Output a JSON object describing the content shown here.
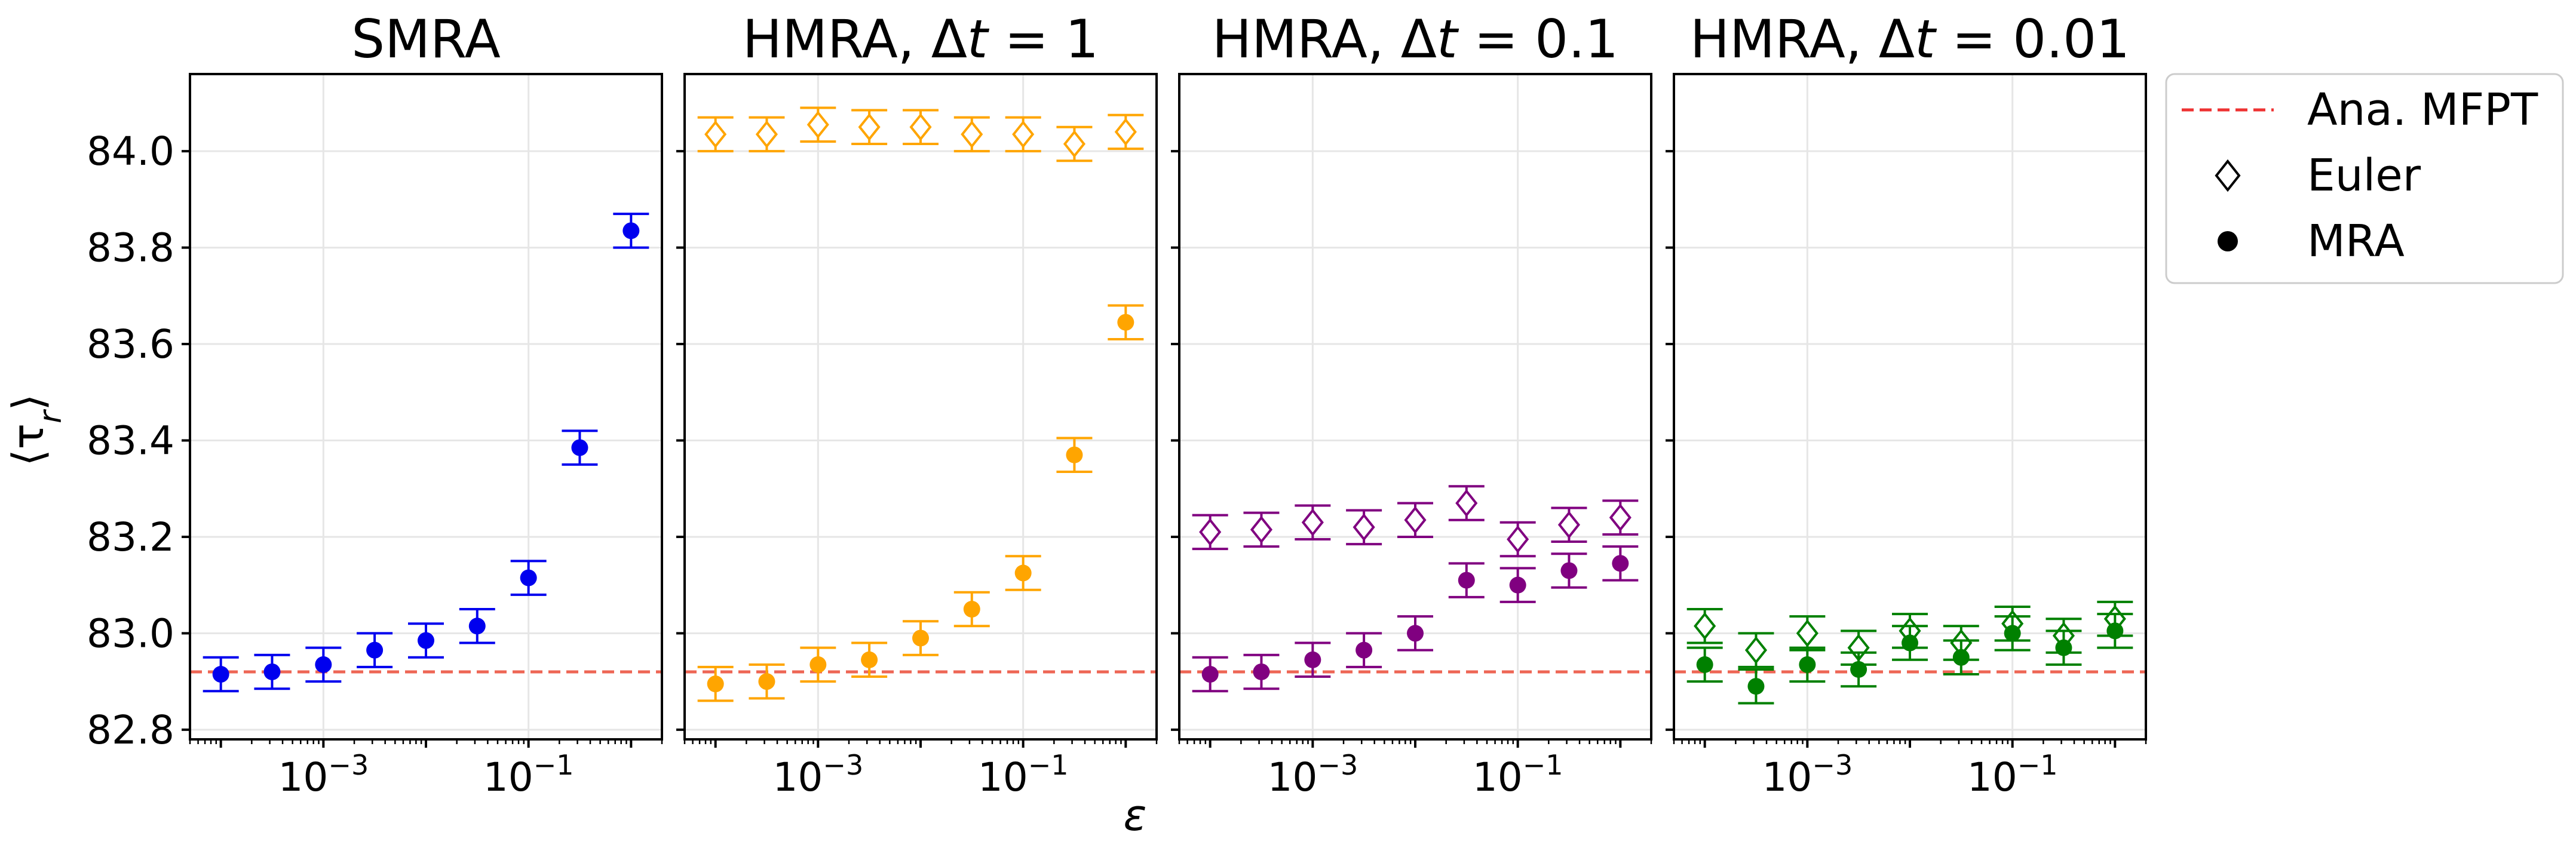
{
  "chart_data": {
    "type": "scatter",
    "ylabel": "⟨τ_r⟩",
    "xlabel": "ε",
    "xscale": "log",
    "xlim": [
      5e-05,
      2.0
    ],
    "ylim": [
      82.78,
      84.16
    ],
    "x_ticks": [
      {
        "value": 0.001,
        "base": "10",
        "exp": "−3"
      },
      {
        "value": 0.1,
        "base": "10",
        "exp": "−1"
      }
    ],
    "y_ticks": [
      82.8,
      83.0,
      83.2,
      83.4,
      83.6,
      83.8,
      84.0
    ],
    "y_tick_labels": [
      "82.8",
      "83.0",
      "83.2",
      "83.4",
      "83.6",
      "83.8",
      "84.0"
    ],
    "grid": true,
    "legend": {
      "position": "outside-right",
      "entries": [
        {
          "label": "Ana. MFPT",
          "marker": "dashed-line",
          "color": "#ee3333"
        },
        {
          "label": "Euler",
          "marker": "open-diamond",
          "color": "#000000"
        },
        {
          "label": "MRA",
          "marker": "filled-circle",
          "color": "#000000"
        }
      ]
    },
    "reference_line": {
      "label": "Ana. MFPT",
      "value": 82.92,
      "color": "#ee6655"
    },
    "x": [
      0.0001,
      0.000316,
      0.001,
      0.00316,
      0.01,
      0.0316,
      0.1,
      0.316,
      1.0
    ],
    "panels": [
      {
        "title_main": "SMRA",
        "title_math": "",
        "color": "#0000ee",
        "series": [
          {
            "name": "MRA",
            "marker": "circle",
            "values": [
              82.915,
              82.92,
              82.935,
              82.965,
              82.985,
              83.015,
              83.115,
              83.385,
              83.835
            ],
            "errors": [
              0.035,
              0.035,
              0.035,
              0.035,
              0.035,
              0.035,
              0.035,
              0.035,
              0.035
            ]
          }
        ]
      },
      {
        "title_main": "HMRA, ",
        "title_math": "Δt = 1",
        "color": "#ffa500",
        "series": [
          {
            "name": "Euler",
            "marker": "diamond",
            "values": [
              84.035,
              84.035,
              84.055,
              84.05,
              84.05,
              84.035,
              84.035,
              84.015,
              84.04
            ],
            "errors": [
              0.035,
              0.035,
              0.035,
              0.035,
              0.035,
              0.035,
              0.035,
              0.035,
              0.035
            ]
          },
          {
            "name": "MRA",
            "marker": "circle",
            "values": [
              82.895,
              82.9,
              82.935,
              82.945,
              82.99,
              83.05,
              83.125,
              83.37,
              83.645
            ],
            "errors": [
              0.035,
              0.035,
              0.035,
              0.035,
              0.035,
              0.035,
              0.035,
              0.035,
              0.035
            ]
          }
        ]
      },
      {
        "title_main": "HMRA, ",
        "title_math": "Δt = 0.1",
        "color": "#800080",
        "series": [
          {
            "name": "Euler",
            "marker": "diamond",
            "values": [
              83.21,
              83.215,
              83.23,
              83.22,
              83.235,
              83.27,
              83.195,
              83.225,
              83.24
            ],
            "errors": [
              0.035,
              0.035,
              0.035,
              0.035,
              0.035,
              0.035,
              0.035,
              0.035,
              0.035
            ]
          },
          {
            "name": "MRA",
            "marker": "circle",
            "values": [
              82.915,
              82.92,
              82.945,
              82.965,
              83.0,
              83.11,
              83.1,
              83.13,
              83.145
            ],
            "errors": [
              0.035,
              0.035,
              0.035,
              0.035,
              0.035,
              0.035,
              0.035,
              0.035,
              0.035
            ]
          }
        ]
      },
      {
        "title_main": "HMRA, ",
        "title_math": "Δt = 0.01",
        "color": "#008000",
        "series": [
          {
            "name": "Euler",
            "marker": "diamond",
            "values": [
              83.015,
              82.965,
              83.0,
              82.97,
              83.005,
              82.98,
              83.02,
              82.995,
              83.03
            ],
            "errors": [
              0.035,
              0.035,
              0.035,
              0.035,
              0.035,
              0.035,
              0.035,
              0.035,
              0.035
            ]
          },
          {
            "name": "MRA",
            "marker": "circle",
            "values": [
              82.935,
              82.89,
              82.935,
              82.925,
              82.98,
              82.95,
              83.0,
              82.97,
              83.005
            ],
            "errors": [
              0.035,
              0.035,
              0.035,
              0.035,
              0.035,
              0.035,
              0.035,
              0.035,
              0.035
            ]
          }
        ]
      }
    ]
  }
}
